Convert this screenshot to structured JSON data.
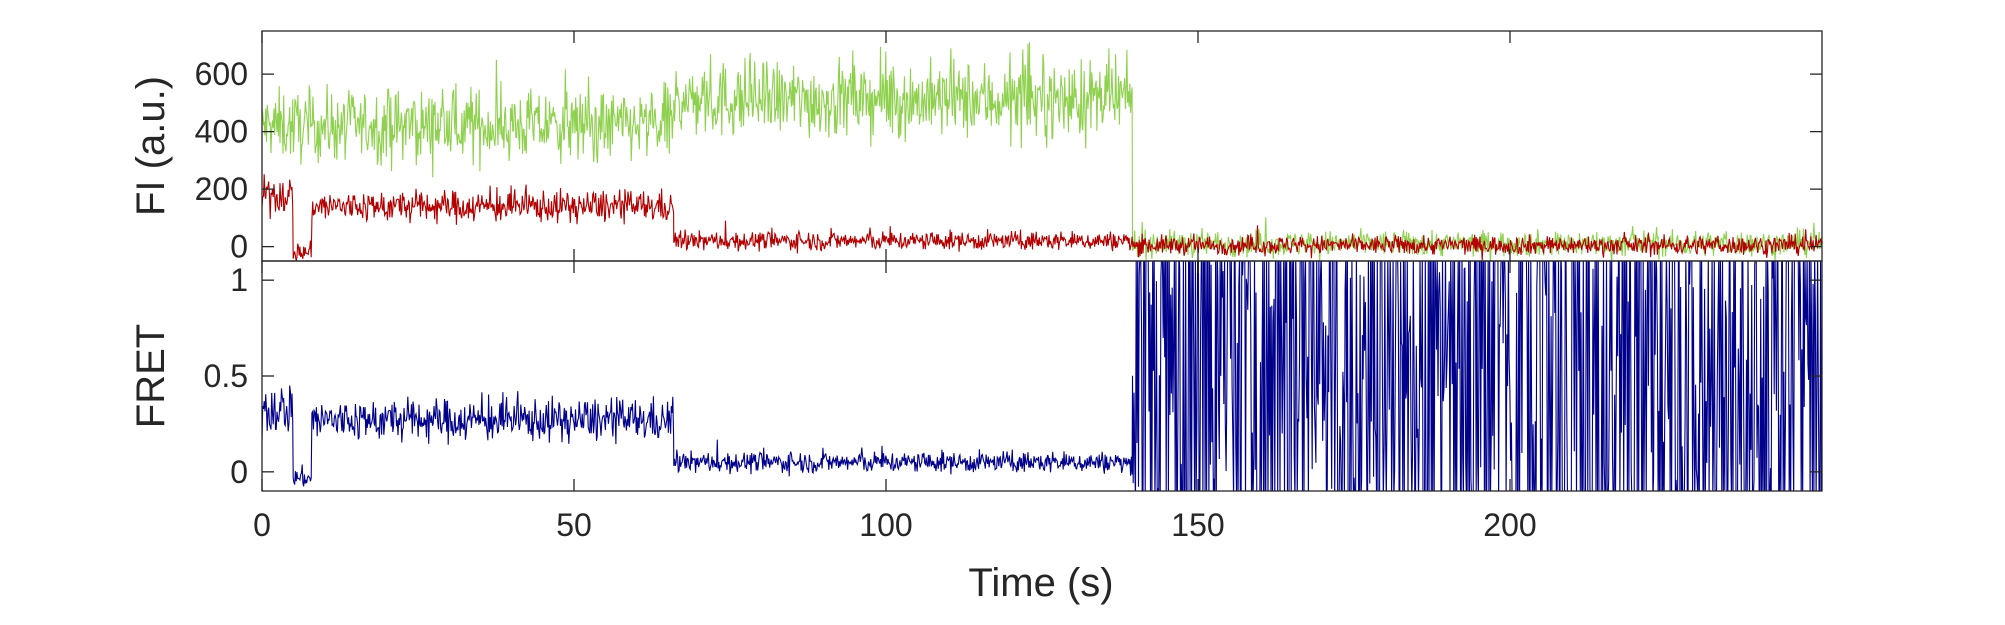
{
  "chart_data": [
    {
      "type": "line",
      "ylabel": "FI (a.u.)",
      "xlim": [
        0,
        250
      ],
      "ylim": [
        -50,
        750
      ],
      "yticks": [
        0,
        200,
        400,
        600
      ],
      "colors": {
        "series_1": "#8fd14f",
        "series_2": "#b20000"
      },
      "series": [
        {
          "color": "#8fd14f",
          "segments": [
            {
              "x": [
                0,
                66
              ],
              "mean": 420,
              "noise": 110
            },
            {
              "x": [
                66,
                139.5
              ],
              "mean": 510,
              "noise": 120
            },
            {
              "x": [
                139.5,
                250
              ],
              "mean": 10,
              "noise": 40
            }
          ]
        },
        {
          "color": "#b20000",
          "segments": [
            {
              "x": [
                0,
                5
              ],
              "mean": 180,
              "noise": 60
            },
            {
              "x": [
                5,
                8
              ],
              "mean": -20,
              "noise": 30
            },
            {
              "x": [
                8,
                66
              ],
              "mean": 140,
              "noise": 50
            },
            {
              "x": [
                66,
                139.5
              ],
              "mean": 20,
              "noise": 30
            },
            {
              "x": [
                139.5,
                250
              ],
              "mean": 5,
              "noise": 30
            }
          ]
        }
      ]
    },
    {
      "type": "line",
      "ylabel": "FRET",
      "xlabel": "Time (s)",
      "xlim": [
        0,
        250
      ],
      "ylim": [
        -0.1,
        1.1
      ],
      "xticks": [
        0,
        50,
        100,
        150,
        200
      ],
      "yticks": [
        0,
        0.5,
        1
      ],
      "ytick_labels": [
        "0",
        "0.5",
        "1"
      ],
      "series": [
        {
          "color": "#00008b",
          "segments": [
            {
              "x": [
                0,
                5
              ],
              "mean": 0.33,
              "noise": 0.12
            },
            {
              "x": [
                5,
                8
              ],
              "mean": -0.03,
              "noise": 0.05
            },
            {
              "x": [
                8,
                66
              ],
              "mean": 0.27,
              "noise": 0.1
            },
            {
              "x": [
                66,
                139.5
              ],
              "mean": 0.05,
              "noise": 0.05
            },
            {
              "x": [
                139.5,
                250
              ],
              "mean": 0.5,
              "noise": 0.5,
              "clip": true
            }
          ]
        }
      ]
    }
  ]
}
